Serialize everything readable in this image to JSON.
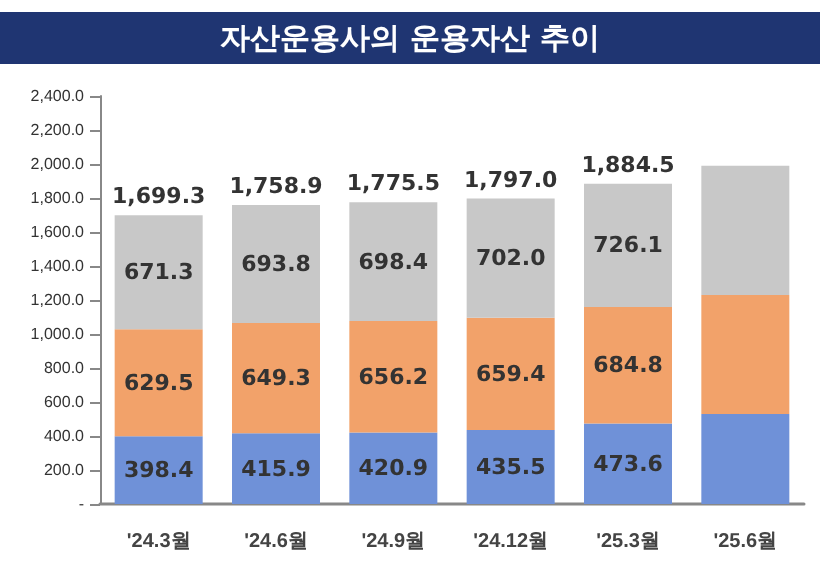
{
  "chart_data": {
    "type": "bar",
    "title": "자산운용사의 운용자산 추이",
    "stacked": true,
    "categories": [
      "'24.3월",
      "'24.6월",
      "'24.9월",
      "'24.12월",
      "'25.3월",
      "'25.6월"
    ],
    "series": [
      {
        "color": "#6f91d8",
        "values": [
          398.4,
          415.9,
          420.9,
          435.5,
          473.6,
          530
        ],
        "value_labels": [
          "398.4",
          "415.9",
          "420.9",
          "435.5",
          "473.6",
          null
        ]
      },
      {
        "color": "#f2a26a",
        "values": [
          629.5,
          649.3,
          656.2,
          659.4,
          684.8,
          700
        ],
        "value_labels": [
          "629.5",
          "649.3",
          "656.2",
          "659.4",
          "684.8",
          null
        ]
      },
      {
        "color": "#c8c8c8",
        "values": [
          671.3,
          693.8,
          698.4,
          702.0,
          726.1,
          760
        ],
        "value_labels": [
          "671.3",
          "693.8",
          "698.4",
          "702.0",
          "726.1",
          null
        ]
      }
    ],
    "totals": [
      "1,699.3",
      "1,758.9",
      "1,775.5",
      "1,797.0",
      "1,884.5",
      null
    ],
    "ylim": [
      0,
      2400
    ],
    "yticks": [
      {
        "value": 0,
        "label": "-"
      },
      {
        "value": 200,
        "label": "200.0"
      },
      {
        "value": 400,
        "label": "400.0"
      },
      {
        "value": 600,
        "label": "600.0"
      },
      {
        "value": 800,
        "label": "800.0"
      },
      {
        "value": 1000,
        "label": "1,000.0"
      },
      {
        "value": 1200,
        "label": "1,200.0"
      },
      {
        "value": 1400,
        "label": "1,400.0"
      },
      {
        "value": 1600,
        "label": "1,600.0"
      },
      {
        "value": 1800,
        "label": "1,800.0"
      },
      {
        "value": 2000,
        "label": "2,000.0"
      },
      {
        "value": 2200,
        "label": "2,200.0"
      },
      {
        "value": 2400,
        "label": "2,400.0"
      }
    ],
    "grid": false
  }
}
